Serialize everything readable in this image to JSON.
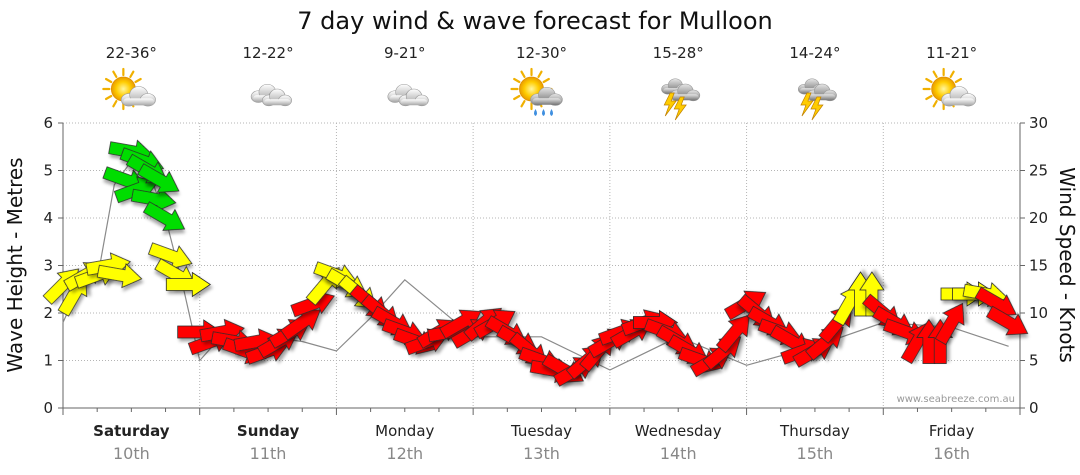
{
  "chart_data": {
    "type": "line",
    "title": "7 day wind & wave forecast for Mulloon",
    "ylabel_left": "Wave Height - Metres",
    "ylabel_right": "Wind Speed - Knots",
    "ylim_left": [
      0,
      6
    ],
    "ylim_right": [
      0,
      30
    ],
    "yticks_left": [
      "0",
      "1",
      "2",
      "3",
      "4",
      "5",
      "6"
    ],
    "yticks_right": [
      "0",
      "5",
      "10",
      "15",
      "20",
      "25",
      "30"
    ],
    "grid": true,
    "credit": "www.seabreeze.com.au",
    "days": [
      {
        "name": "Saturday",
        "date": "10th",
        "temp": "22-36°",
        "icon": "sun-cloud-icon",
        "bold": true
      },
      {
        "name": "Sunday",
        "date": "11th",
        "temp": "12-22°",
        "icon": "cloud-icon",
        "bold": true
      },
      {
        "name": "Monday",
        "date": "12th",
        "temp": "9-21°",
        "icon": "cloud-icon",
        "bold": false
      },
      {
        "name": "Tuesday",
        "date": "13th",
        "temp": "12-30°",
        "icon": "sun-rain-icon",
        "bold": false
      },
      {
        "name": "Wednesday",
        "date": "14th",
        "temp": "15-28°",
        "icon": "storm-icon",
        "bold": false
      },
      {
        "name": "Thursday",
        "date": "15th",
        "temp": "14-24°",
        "icon": "storm-icon",
        "bold": false
      },
      {
        "name": "Friday",
        "date": "16th",
        "temp": "11-21°",
        "icon": "sun-cloud-icon",
        "bold": false
      }
    ],
    "wave_series": {
      "name": "Wave Height",
      "x_hours": [
        0,
        3,
        6,
        9,
        12,
        15,
        18,
        21,
        24,
        27,
        30,
        33,
        36,
        42,
        48,
        54,
        60,
        72,
        84,
        96,
        108,
        120,
        132,
        144,
        156,
        166
      ],
      "values": [
        1.8,
        2.6,
        2.7,
        4.7,
        5.2,
        5.0,
        4.0,
        2.6,
        1.0,
        1.4,
        1.3,
        1.2,
        1.5,
        1.4,
        1.2,
        1.9,
        2.7,
        1.5,
        1.5,
        0.8,
        1.5,
        0.9,
        1.3,
        1.8,
        1.7,
        1.3
      ]
    },
    "wind_colors": {
      "light": "#ffff00",
      "moderate": "#00dd00",
      "strong": "#ff0000"
    },
    "wind_series": {
      "name": "Wind Speed",
      "points": [
        {
          "h": 0,
          "v": 13,
          "dir": -45,
          "c": "yellow"
        },
        {
          "h": 2,
          "v": 12,
          "dir": -60,
          "c": "yellow"
        },
        {
          "h": 4,
          "v": 14,
          "dir": -30,
          "c": "yellow"
        },
        {
          "h": 6,
          "v": 14,
          "dir": -20,
          "c": "yellow"
        },
        {
          "h": 8,
          "v": 15,
          "dir": -10,
          "c": "yellow"
        },
        {
          "h": 10,
          "v": 14,
          "dir": 10,
          "c": "yellow"
        },
        {
          "h": 11,
          "v": 24,
          "dir": 20,
          "c": "green"
        },
        {
          "h": 12,
          "v": 27,
          "dir": 10,
          "c": "green"
        },
        {
          "h": 13,
          "v": 23,
          "dir": -20,
          "c": "green"
        },
        {
          "h": 14,
          "v": 26,
          "dir": 20,
          "c": "green"
        },
        {
          "h": 15,
          "v": 25,
          "dir": 30,
          "c": "green"
        },
        {
          "h": 16,
          "v": 22,
          "dir": 10,
          "c": "green"
        },
        {
          "h": 17,
          "v": 24,
          "dir": 30,
          "c": "green"
        },
        {
          "h": 18,
          "v": 20,
          "dir": 30,
          "c": "green"
        },
        {
          "h": 19,
          "v": 16,
          "dir": 20,
          "c": "yellow"
        },
        {
          "h": 20,
          "v": 14,
          "dir": 30,
          "c": "yellow"
        },
        {
          "h": 22,
          "v": 13,
          "dir": 0,
          "c": "yellow"
        },
        {
          "h": 24,
          "v": 8,
          "dir": 0,
          "c": "red"
        },
        {
          "h": 26,
          "v": 7,
          "dir": -20,
          "c": "red"
        },
        {
          "h": 28,
          "v": 8,
          "dir": -10,
          "c": "red"
        },
        {
          "h": 30,
          "v": 7,
          "dir": 10,
          "c": "red"
        },
        {
          "h": 32,
          "v": 6,
          "dir": 20,
          "c": "red"
        },
        {
          "h": 34,
          "v": 7,
          "dir": -10,
          "c": "red"
        },
        {
          "h": 36,
          "v": 6,
          "dir": -20,
          "c": "red"
        },
        {
          "h": 38,
          "v": 7,
          "dir": -30,
          "c": "red"
        },
        {
          "h": 40,
          "v": 8,
          "dir": -30,
          "c": "red"
        },
        {
          "h": 42,
          "v": 9,
          "dir": -35,
          "c": "red"
        },
        {
          "h": 44,
          "v": 11,
          "dir": -20,
          "c": "red"
        },
        {
          "h": 46,
          "v": 13,
          "dir": -50,
          "c": "yellow"
        },
        {
          "h": 48,
          "v": 14,
          "dir": 20,
          "c": "yellow"
        },
        {
          "h": 50,
          "v": 13,
          "dir": 30,
          "c": "yellow"
        },
        {
          "h": 52,
          "v": 12,
          "dir": 40,
          "c": "yellow"
        },
        {
          "h": 54,
          "v": 11,
          "dir": 40,
          "c": "red"
        },
        {
          "h": 56,
          "v": 10,
          "dir": 40,
          "c": "red"
        },
        {
          "h": 58,
          "v": 9,
          "dir": 30,
          "c": "red"
        },
        {
          "h": 60,
          "v": 8,
          "dir": 20,
          "c": "red"
        },
        {
          "h": 62,
          "v": 7,
          "dir": 20,
          "c": "red"
        },
        {
          "h": 64,
          "v": 7,
          "dir": -20,
          "c": "red"
        },
        {
          "h": 66,
          "v": 8,
          "dir": -30,
          "c": "red"
        },
        {
          "h": 68,
          "v": 8,
          "dir": -10,
          "c": "red"
        },
        {
          "h": 70,
          "v": 9,
          "dir": -30,
          "c": "red"
        },
        {
          "h": 72,
          "v": 8,
          "dir": -30,
          "c": "red"
        },
        {
          "h": 74,
          "v": 9,
          "dir": -40,
          "c": "red"
        },
        {
          "h": 76,
          "v": 9,
          "dir": -30,
          "c": "red"
        },
        {
          "h": 78,
          "v": 8,
          "dir": 30,
          "c": "red"
        },
        {
          "h": 80,
          "v": 7,
          "dir": 30,
          "c": "red"
        },
        {
          "h": 82,
          "v": 6,
          "dir": 40,
          "c": "red"
        },
        {
          "h": 84,
          "v": 5,
          "dir": 20,
          "c": "red"
        },
        {
          "h": 86,
          "v": 4,
          "dir": 10,
          "c": "red"
        },
        {
          "h": 88,
          "v": 4,
          "dir": 30,
          "c": "red"
        },
        {
          "h": 90,
          "v": 4,
          "dir": -30,
          "c": "red"
        },
        {
          "h": 92,
          "v": 5,
          "dir": -40,
          "c": "red"
        },
        {
          "h": 94,
          "v": 6,
          "dir": -50,
          "c": "red"
        },
        {
          "h": 96,
          "v": 7,
          "dir": -30,
          "c": "red"
        },
        {
          "h": 98,
          "v": 8,
          "dir": -20,
          "c": "red"
        },
        {
          "h": 100,
          "v": 8,
          "dir": -30,
          "c": "red"
        },
        {
          "h": 102,
          "v": 9,
          "dir": -20,
          "c": "red"
        },
        {
          "h": 104,
          "v": 9,
          "dir": 0,
          "c": "red"
        },
        {
          "h": 106,
          "v": 8,
          "dir": 20,
          "c": "red"
        },
        {
          "h": 108,
          "v": 7,
          "dir": 30,
          "c": "red"
        },
        {
          "h": 110,
          "v": 6,
          "dir": 30,
          "c": "red"
        },
        {
          "h": 112,
          "v": 5,
          "dir": 20,
          "c": "red"
        },
        {
          "h": 114,
          "v": 5,
          "dir": -30,
          "c": "red"
        },
        {
          "h": 116,
          "v": 6,
          "dir": -40,
          "c": "red"
        },
        {
          "h": 118,
          "v": 8,
          "dir": -50,
          "c": "red"
        },
        {
          "h": 120,
          "v": 11,
          "dir": -30,
          "c": "red"
        },
        {
          "h": 122,
          "v": 10,
          "dir": 40,
          "c": "red"
        },
        {
          "h": 124,
          "v": 9,
          "dir": 30,
          "c": "red"
        },
        {
          "h": 126,
          "v": 8,
          "dir": 20,
          "c": "red"
        },
        {
          "h": 128,
          "v": 7,
          "dir": 30,
          "c": "red"
        },
        {
          "h": 130,
          "v": 6,
          "dir": -20,
          "c": "red"
        },
        {
          "h": 132,
          "v": 6,
          "dir": -30,
          "c": "red"
        },
        {
          "h": 134,
          "v": 7,
          "dir": -40,
          "c": "red"
        },
        {
          "h": 136,
          "v": 9,
          "dir": -50,
          "c": "red"
        },
        {
          "h": 138,
          "v": 11,
          "dir": -60,
          "c": "yellow"
        },
        {
          "h": 140,
          "v": 12,
          "dir": -90,
          "c": "yellow"
        },
        {
          "h": 142,
          "v": 12,
          "dir": -90,
          "c": "yellow"
        },
        {
          "h": 144,
          "v": 10,
          "dir": 40,
          "c": "red"
        },
        {
          "h": 146,
          "v": 9,
          "dir": 30,
          "c": "red"
        },
        {
          "h": 148,
          "v": 8,
          "dir": 20,
          "c": "red"
        },
        {
          "h": 150,
          "v": 7,
          "dir": -60,
          "c": "red"
        },
        {
          "h": 152,
          "v": 7,
          "dir": -90,
          "c": "red"
        },
        {
          "h": 154,
          "v": 7,
          "dir": -90,
          "c": "red"
        },
        {
          "h": 156,
          "v": 9,
          "dir": -60,
          "c": "red"
        },
        {
          "h": 158,
          "v": 12,
          "dir": 0,
          "c": "yellow"
        },
        {
          "h": 160,
          "v": 12,
          "dir": 0,
          "c": "yellow"
        },
        {
          "h": 162,
          "v": 12,
          "dir": 10,
          "c": "yellow"
        },
        {
          "h": 164,
          "v": 11,
          "dir": 30,
          "c": "red"
        },
        {
          "h": 166,
          "v": 9,
          "dir": 30,
          "c": "red"
        }
      ]
    }
  }
}
